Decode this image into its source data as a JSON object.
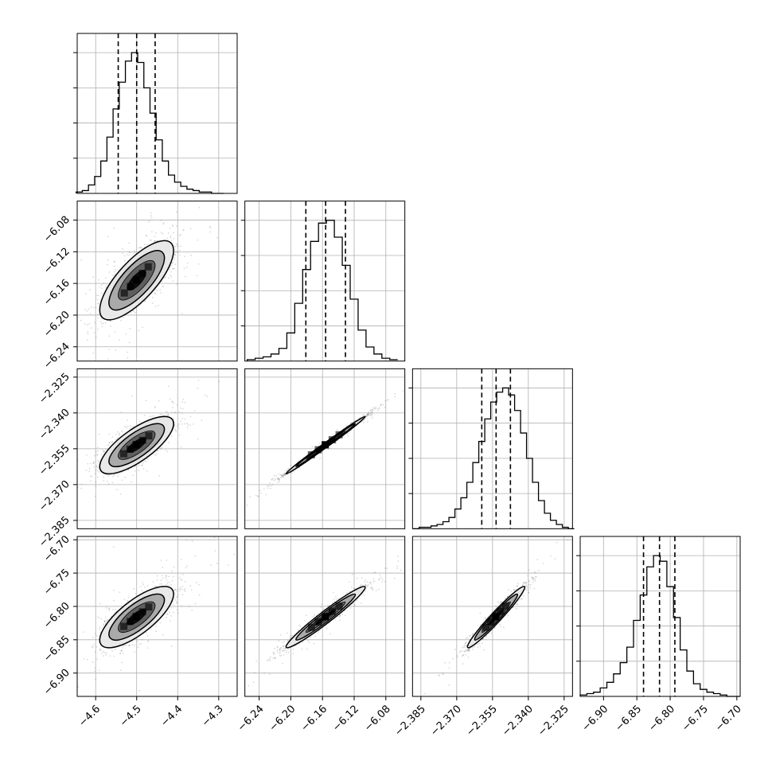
{
  "chart_data": {
    "type": "corner",
    "title": "",
    "grid": true,
    "params": [
      {
        "median": -4.5,
        "q16": -4.545,
        "q84": -4.455,
        "sd": 0.045,
        "range": [
          -4.645,
          -4.255
        ],
        "ticks": [
          -4.6,
          -4.5,
          -4.4,
          -4.3
        ],
        "tick_labels": [
          "−4.6",
          "−4.5",
          "−4.4",
          "−4.3"
        ]
      },
      {
        "median": -6.156,
        "q16": -6.181,
        "q84": -6.131,
        "sd": 0.025,
        "range": [
          -6.258,
          -6.056
        ],
        "ticks": [
          -6.24,
          -6.2,
          -6.16,
          -6.12,
          -6.08
        ],
        "tick_labels": [
          "−6.24",
          "−6.20",
          "−6.16",
          "−6.12",
          "−6.08"
        ]
      },
      {
        "median": -2.3535,
        "q16": -2.3595,
        "q84": -2.3475,
        "sd": 0.006,
        "range": [
          -2.3885,
          -2.3215
        ],
        "ticks": [
          -2.385,
          -2.37,
          -2.355,
          -2.34,
          -2.325
        ],
        "tick_labels": [
          "−2.385",
          "−2.370",
          "−2.355",
          "−2.340",
          "−2.325"
        ]
      },
      {
        "median": -6.816,
        "q16": -6.84,
        "q84": -6.793,
        "sd": 0.023,
        "range": [
          -6.935,
          -6.695
        ],
        "ticks": [
          -6.9,
          -6.85,
          -6.8,
          -6.75,
          -6.7
        ],
        "tick_labels": [
          "−6.90",
          "−6.85",
          "−6.80",
          "−6.75",
          "−6.70"
        ]
      }
    ],
    "correlations": [
      [
        1.0,
        0.75,
        0.75,
        0.75
      ],
      [
        0.75,
        1.0,
        0.995,
        0.97
      ],
      [
        0.75,
        0.995,
        1.0,
        0.97
      ],
      [
        0.75,
        0.97,
        0.97,
        1.0
      ]
    ],
    "histograms": [
      {
        "bins": [
          -4.64,
          -4.625,
          -4.61,
          -4.595,
          -4.58,
          -4.565,
          -4.55,
          -4.535,
          -4.52,
          -4.505,
          -4.49,
          -4.475,
          -4.46,
          -4.445,
          -4.43,
          -4.415,
          -4.4,
          -4.385,
          -4.37,
          -4.355,
          -4.34,
          -4.325,
          -4.31,
          -4.295
        ],
        "counts": [
          1,
          2,
          6,
          12,
          23,
          40,
          60,
          79,
          94,
          100,
          93,
          75,
          57,
          38,
          23,
          13,
          8,
          5,
          3,
          2,
          1,
          1,
          0,
          0
        ]
      },
      {
        "bins": [
          -6.25,
          -6.24,
          -6.23,
          -6.22,
          -6.21,
          -6.2,
          -6.19,
          -6.18,
          -6.17,
          -6.16,
          -6.15,
          -6.14,
          -6.13,
          -6.12,
          -6.11,
          -6.1,
          -6.09,
          -6.08,
          -6.07
        ],
        "counts": [
          1,
          2,
          3,
          5,
          9,
          20,
          41,
          65,
          85,
          98,
          100,
          88,
          68,
          44,
          22,
          10,
          5,
          2,
          1
        ]
      },
      {
        "bins": [
          -2.387,
          -2.3845,
          -2.382,
          -2.3795,
          -2.377,
          -2.3745,
          -2.372,
          -2.3695,
          -2.367,
          -2.3645,
          -2.362,
          -2.3595,
          -2.357,
          -2.3545,
          -2.352,
          -2.3495,
          -2.347,
          -2.3445,
          -2.342,
          -2.3395,
          -2.337,
          -2.3345,
          -2.332,
          -2.3295,
          -2.327,
          -2.3245,
          -2.322
        ],
        "counts": [
          0,
          1,
          1,
          2,
          3,
          5,
          8,
          14,
          22,
          33,
          47,
          62,
          78,
          90,
          97,
          100,
          95,
          84,
          68,
          50,
          33,
          20,
          11,
          6,
          3,
          1,
          0
        ]
      },
      {
        "bins": [
          -6.93,
          -6.92,
          -6.91,
          -6.9,
          -6.89,
          -6.88,
          -6.87,
          -6.86,
          -6.85,
          -6.84,
          -6.83,
          -6.82,
          -6.81,
          -6.8,
          -6.79,
          -6.78,
          -6.77,
          -6.76,
          -6.75,
          -6.74,
          -6.73,
          -6.72,
          -6.71,
          -6.7
        ],
        "counts": [
          1,
          2,
          3,
          6,
          10,
          16,
          24,
          35,
          54,
          72,
          92,
          100,
          96,
          78,
          56,
          33,
          18,
          9,
          5,
          3,
          2,
          1,
          0,
          0
        ]
      }
    ],
    "contour_levels": [
      "0.5-sigma",
      "1-sigma",
      "1.5-sigma",
      "2-sigma"
    ],
    "colors": {
      "frame": "#000000",
      "grid": "#b0b0b0",
      "points": "#555555",
      "fill_light": "#e8e8e8",
      "fill_mid": "#a6a6a6",
      "fill_dark": "#5a5a5a",
      "fill_core": "#000000"
    }
  }
}
